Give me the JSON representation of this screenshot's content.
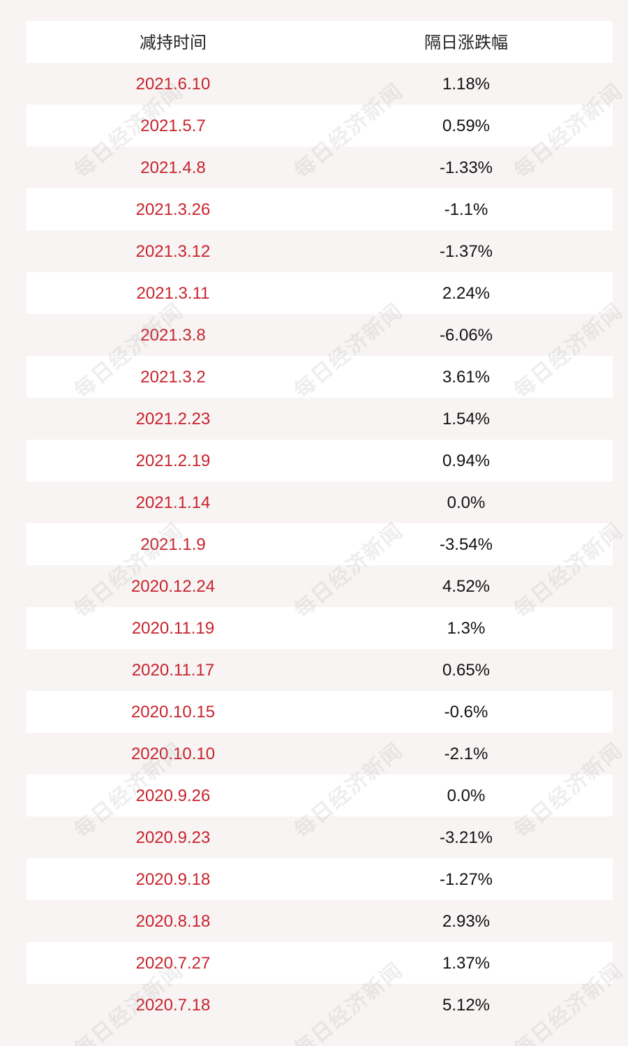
{
  "table": {
    "headers": {
      "date": "减持时间",
      "change": "隔日涨跌幅"
    },
    "rows": [
      {
        "date": "2021.6.10",
        "change": "1.18%"
      },
      {
        "date": "2021.5.7",
        "change": "0.59%"
      },
      {
        "date": "2021.4.8",
        "change": "-1.33%"
      },
      {
        "date": "2021.3.26",
        "change": "-1.1%"
      },
      {
        "date": "2021.3.12",
        "change": "-1.37%"
      },
      {
        "date": "2021.3.11",
        "change": "2.24%"
      },
      {
        "date": "2021.3.8",
        "change": "-6.06%"
      },
      {
        "date": "2021.3.2",
        "change": "3.61%"
      },
      {
        "date": "2021.2.23",
        "change": "1.54%"
      },
      {
        "date": "2021.2.19",
        "change": "0.94%"
      },
      {
        "date": "2021.1.14",
        "change": "0.0%"
      },
      {
        "date": "2021.1.9",
        "change": "-3.54%"
      },
      {
        "date": "2020.12.24",
        "change": "4.52%"
      },
      {
        "date": "2020.11.19",
        "change": "1.3%"
      },
      {
        "date": "2020.11.17",
        "change": "0.65%"
      },
      {
        "date": "2020.10.15",
        "change": "-0.6%"
      },
      {
        "date": "2020.10.10",
        "change": "-2.1%"
      },
      {
        "date": "2020.9.26",
        "change": "0.0%"
      },
      {
        "date": "2020.9.23",
        "change": "-3.21%"
      },
      {
        "date": "2020.9.18",
        "change": "-1.27%"
      },
      {
        "date": "2020.8.18",
        "change": "2.93%"
      },
      {
        "date": "2020.7.27",
        "change": "1.37%"
      },
      {
        "date": "2020.7.18",
        "change": "5.12%"
      }
    ]
  },
  "watermark": {
    "text": "每日经济新闻"
  },
  "colors": {
    "date_text": "#c8232c",
    "change_text": "#111111",
    "stripe_white": "#ffffff",
    "stripe_pink": "#f8f4f4"
  }
}
